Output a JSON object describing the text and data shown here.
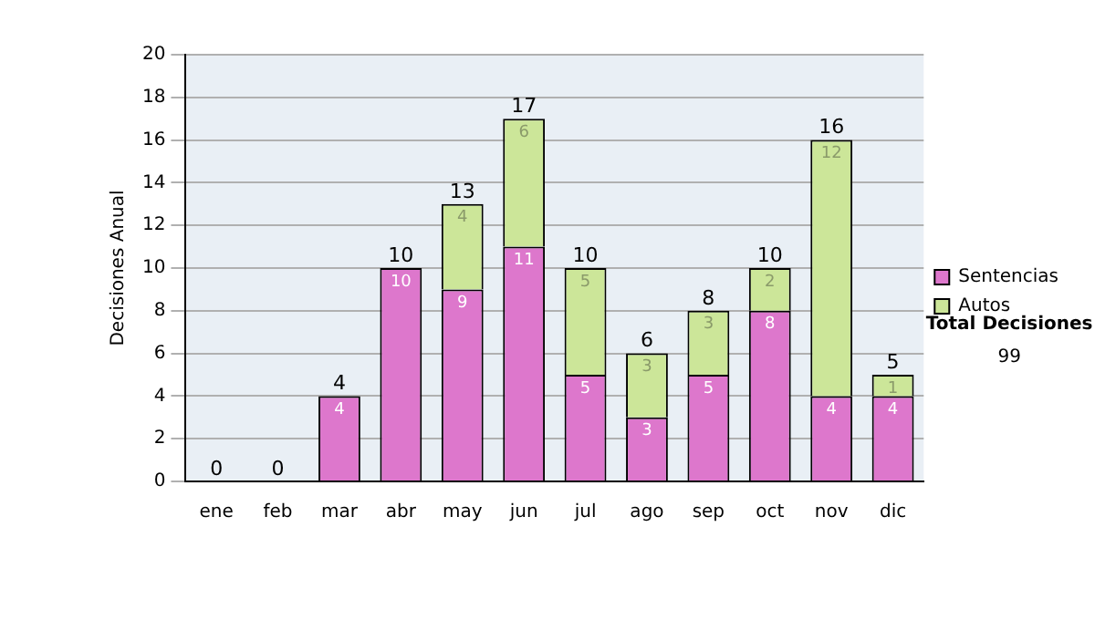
{
  "chart_data": {
    "type": "bar",
    "stacked": true,
    "ylabel": "Decisiones Anual",
    "categories": [
      "ene",
      "feb",
      "mar",
      "abr",
      "may",
      "jun",
      "jul",
      "ago",
      "sep",
      "oct",
      "nov",
      "dic"
    ],
    "series": [
      {
        "name": "Sentencias",
        "color": "#dd77cc",
        "values": [
          0,
          0,
          4,
          10,
          9,
          11,
          5,
          3,
          5,
          8,
          4,
          4
        ],
        "value_labels": [
          null,
          null,
          "4",
          "10",
          "9",
          "11",
          "5",
          "3",
          "5",
          "8",
          "4",
          "4"
        ]
      },
      {
        "name": "Autos",
        "color": "#cce699",
        "values": [
          0,
          0,
          0,
          0,
          4,
          6,
          5,
          3,
          3,
          2,
          12,
          1
        ],
        "value_labels": [
          null,
          null,
          null,
          null,
          "4",
          "6",
          "5",
          "3",
          "3",
          "2",
          "12",
          "1"
        ]
      }
    ],
    "totals": [
      "0",
      "0",
      "4",
      "10",
      "13",
      "17",
      "10",
      "6",
      "8",
      "10",
      "16",
      "5"
    ],
    "ylim": [
      0,
      20
    ],
    "yticks": [
      0,
      2,
      4,
      6,
      8,
      10,
      12,
      14,
      16,
      18,
      20
    ],
    "grid": "y",
    "legend": "right",
    "annotations": [
      "Total Decisiones",
      "99"
    ]
  }
}
